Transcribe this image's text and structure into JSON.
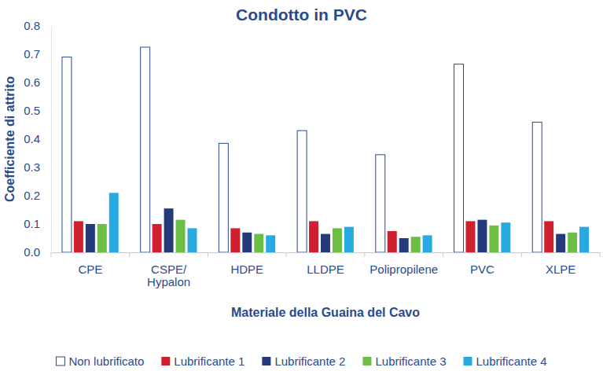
{
  "chart_data": {
    "type": "bar",
    "title": "Condotto in PVC",
    "x_label": "Materiale della Guaina del Cavo",
    "y_label": "Coefficiente di attrito",
    "categories": [
      "CPE",
      "CSPE/\nHypalon",
      "HDPE",
      "LLDPE",
      "Polipropilene",
      "PVC",
      "XLPE"
    ],
    "series": [
      {
        "name": "Non lubrificato",
        "color": "#ffffff",
        "values": [
          0.69,
          0.725,
          0.385,
          0.43,
          0.345,
          0.665,
          0.46
        ]
      },
      {
        "name": "Lubrificante 1",
        "color": "#d0202e",
        "values": [
          0.11,
          0.1,
          0.085,
          0.11,
          0.075,
          0.11,
          0.11
        ]
      },
      {
        "name": "Lubrificante 2",
        "color": "#253a7a",
        "values": [
          0.1,
          0.155,
          0.07,
          0.065,
          0.05,
          0.115,
          0.065
        ]
      },
      {
        "name": "Lubrificante 3",
        "color": "#6cbe45",
        "values": [
          0.1,
          0.115,
          0.065,
          0.085,
          0.055,
          0.095,
          0.07
        ]
      },
      {
        "name": "Lubrificante 4",
        "color": "#27a9e1",
        "values": [
          0.21,
          0.085,
          0.06,
          0.09,
          0.06,
          0.105,
          0.09
        ]
      }
    ],
    "ylim": [
      0,
      0.8
    ],
    "yticks": [
      {
        "value": 0,
        "label": "0.0"
      },
      0.1,
      0.2,
      0.3,
      0.4,
      0.5,
      0.6,
      0.7,
      0.8
    ],
    "grid": false,
    "legend": "bottom"
  }
}
